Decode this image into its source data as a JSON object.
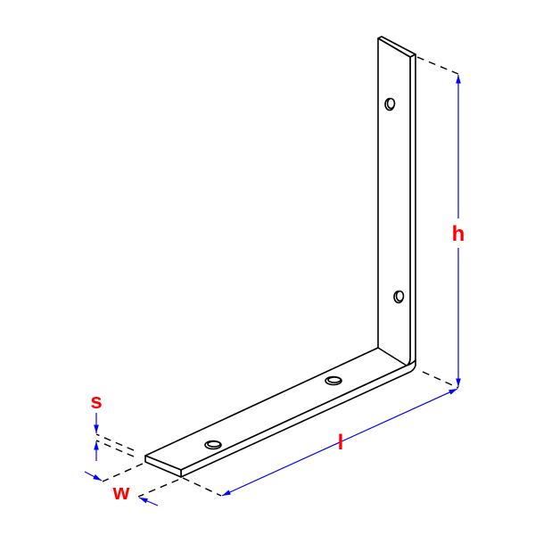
{
  "dimensions": {
    "height_label": "h",
    "length_label": "l",
    "width_label": "w",
    "thickness_label": "s"
  },
  "colors": {
    "outline": "#000000",
    "dimension_line": "#0000ff",
    "label": "#ff0000"
  },
  "holes": 4
}
